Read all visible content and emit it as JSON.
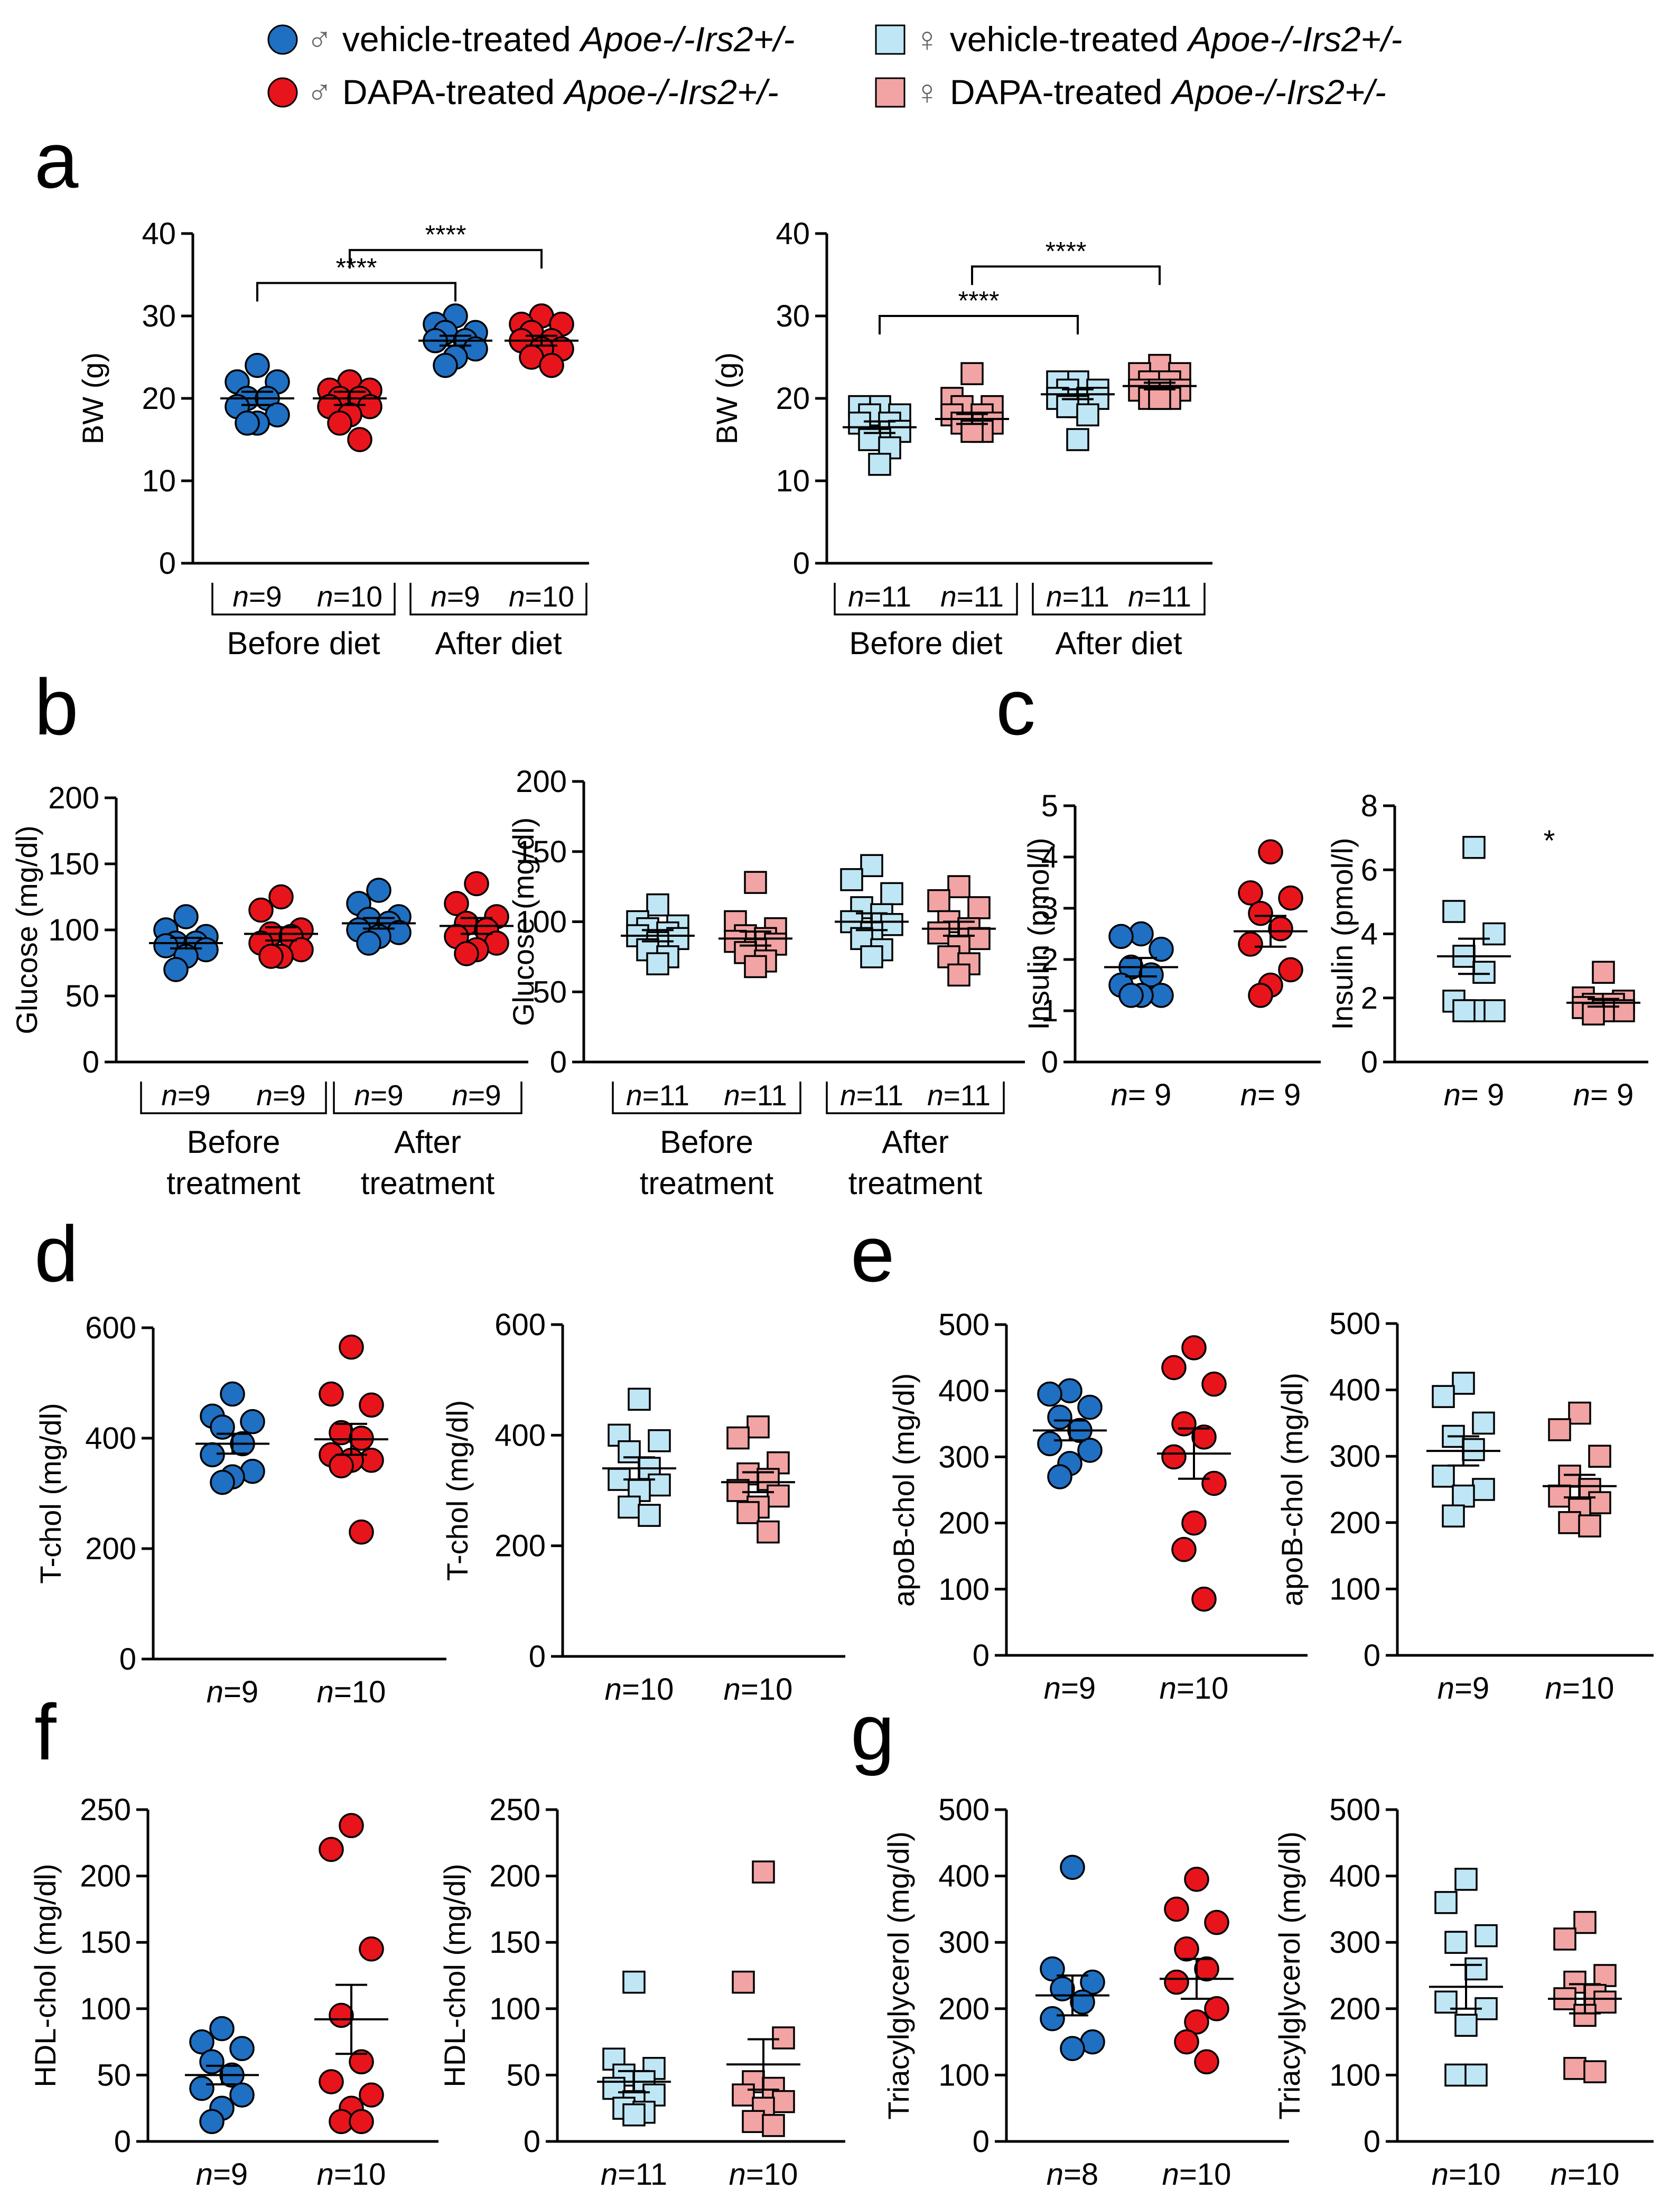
{
  "colors": {
    "male_vehicle": "#1f6fc2",
    "male_dapa": "#e8141b",
    "female_vehicle": "#bfe6f5",
    "female_dapa": "#f2a3a3",
    "ink": "#000000"
  },
  "legend": [
    {
      "key": "male_vehicle",
      "sex": "♂",
      "prefix": "vehicle-treated ",
      "genotype": "Apoe-/-Irs2+/-",
      "marker": "circle"
    },
    {
      "key": "female_vehicle",
      "sex": "♀",
      "prefix": "vehicle-treated ",
      "genotype": "Apoe-/-Irs2+/-",
      "marker": "square"
    },
    {
      "key": "male_dapa",
      "sex": "♂",
      "prefix": "DAPA-treated ",
      "genotype": "Apoe-/-Irs2+/-",
      "marker": "circle"
    },
    {
      "key": "female_dapa",
      "sex": "♀",
      "prefix": "DAPA-treated ",
      "genotype": "Apoe-/-Irs2+/-",
      "marker": "square"
    }
  ],
  "panel_letters": [
    "a",
    "b",
    "c",
    "d",
    "e",
    "f",
    "g"
  ],
  "chart_data": [
    {
      "id": "a-male",
      "panel": "a",
      "type": "scatter",
      "ylabel": "BW (g)",
      "ylim": [
        0,
        40
      ],
      "yticks": [
        0,
        10,
        20,
        30,
        40
      ],
      "groups": [
        {
          "n": "9",
          "key": "male_vehicle",
          "values": [
            24,
            22,
            22,
            20,
            20,
            19,
            18,
            17,
            17
          ],
          "mean": 20,
          "sem": 0.8
        },
        {
          "n": "10",
          "key": "male_dapa",
          "values": [
            22,
            21,
            21,
            20,
            20,
            19,
            19,
            18,
            17,
            15
          ],
          "mean": 20,
          "sem": 0.8
        },
        {
          "n": "9",
          "key": "male_vehicle",
          "values": [
            30,
            29,
            28,
            28,
            27,
            27,
            26,
            25,
            24
          ],
          "mean": 27,
          "sem": 0.6
        },
        {
          "n": "10",
          "key": "male_dapa",
          "values": [
            30,
            29,
            29,
            28,
            27,
            27,
            26,
            26,
            25,
            24
          ],
          "mean": 27,
          "sem": 0.6
        }
      ],
      "brackets": [
        {
          "labels": [
            "n=9",
            "n=10"
          ],
          "text": "Before diet"
        },
        {
          "labels": [
            "n=9",
            "n=10"
          ],
          "text": "After diet"
        }
      ],
      "sig": [
        {
          "from": 0,
          "to": 2,
          "label": "****",
          "y": 34
        },
        {
          "from": 1,
          "to": 3,
          "label": "****",
          "y": 38
        }
      ]
    },
    {
      "id": "a-female",
      "panel": "a",
      "type": "scatter",
      "ylabel": "BW (g)",
      "ylim": [
        0,
        40
      ],
      "yticks": [
        0,
        10,
        20,
        30,
        40
      ],
      "groups": [
        {
          "n": "11",
          "key": "female_vehicle",
          "values": [
            19,
            19,
            18,
            18,
            17,
            17,
            16,
            15,
            15,
            14,
            12
          ],
          "mean": 16.5,
          "sem": 0.7
        },
        {
          "n": "11",
          "key": "female_dapa",
          "values": [
            23,
            20,
            19,
            19,
            18,
            18,
            17,
            17,
            17,
            16,
            16
          ],
          "mean": 17.5,
          "sem": 0.6
        },
        {
          "n": "11",
          "key": "female_vehicle",
          "values": [
            22,
            22,
            21,
            21,
            20,
            20,
            20,
            19,
            19,
            18,
            15
          ],
          "mean": 20.5,
          "sem": 0.6
        },
        {
          "n": "11",
          "key": "female_dapa",
          "values": [
            24,
            23,
            23,
            22,
            22,
            21,
            21,
            21,
            20,
            20,
            20
          ],
          "mean": 21.5,
          "sem": 0.4
        }
      ],
      "brackets": [
        {
          "labels": [
            "n=11",
            "n=11"
          ],
          "text": "Before diet"
        },
        {
          "labels": [
            "n=11",
            "n=11"
          ],
          "text": "After diet"
        }
      ],
      "sig": [
        {
          "from": 0,
          "to": 2,
          "label": "****",
          "y": 30
        },
        {
          "from": 1,
          "to": 3,
          "label": "****",
          "y": 36
        }
      ]
    },
    {
      "id": "b-male",
      "panel": "b",
      "type": "scatter",
      "ylabel": "Glucose (mg/dl)",
      "ylim": [
        0,
        200
      ],
      "yticks": [
        0,
        50,
        100,
        150,
        200
      ],
      "groups": [
        {
          "n": "9",
          "key": "male_vehicle",
          "values": [
            110,
            100,
            95,
            90,
            90,
            88,
            85,
            80,
            70
          ],
          "mean": 90,
          "sem": 4
        },
        {
          "n": "9",
          "key": "male_dapa",
          "values": [
            125,
            115,
            100,
            97,
            95,
            90,
            85,
            80,
            80
          ],
          "mean": 97,
          "sem": 5
        },
        {
          "n": "9",
          "key": "male_vehicle",
          "values": [
            130,
            120,
            110,
            108,
            105,
            100,
            98,
            95,
            90
          ],
          "mean": 105,
          "sem": 4
        },
        {
          "n": "9",
          "key": "male_dapa",
          "values": [
            135,
            120,
            110,
            105,
            100,
            95,
            90,
            85,
            82
          ],
          "mean": 103,
          "sem": 6
        }
      ],
      "brackets": [
        {
          "labels": [
            "n=9",
            "n=9"
          ],
          "text": "Before\ntreatment"
        },
        {
          "labels": [
            "n=9",
            "n=9"
          ],
          "text": "After\ntreatment"
        }
      ],
      "sig": []
    },
    {
      "id": "b-female",
      "panel": "b",
      "type": "scatter",
      "ylabel": "Glucose (mg/dl)",
      "ylim": [
        0,
        200
      ],
      "yticks": [
        0,
        50,
        100,
        150,
        200
      ],
      "groups": [
        {
          "n": "11",
          "key": "female_vehicle",
          "values": [
            112,
            100,
            97,
            95,
            92,
            90,
            88,
            85,
            80,
            75,
            70
          ],
          "mean": 90,
          "sem": 4
        },
        {
          "n": "11",
          "key": "female_dapa",
          "values": [
            128,
            100,
            95,
            90,
            88,
            86,
            84,
            80,
            78,
            72,
            68
          ],
          "mean": 88,
          "sem": 5
        },
        {
          "n": "11",
          "key": "female_vehicle",
          "values": [
            140,
            130,
            120,
            110,
            105,
            100,
            98,
            92,
            88,
            80,
            75
          ],
          "mean": 100,
          "sem": 6
        },
        {
          "n": "11",
          "key": "female_dapa",
          "values": [
            125,
            115,
            110,
            100,
            95,
            92,
            88,
            82,
            75,
            70,
            62
          ],
          "mean": 95,
          "sem": 5
        }
      ],
      "brackets": [
        {
          "labels": [
            "n=11",
            "n=11"
          ],
          "text": "Before\ntreatment"
        },
        {
          "labels": [
            "n=11",
            "n=11"
          ],
          "text": "After\ntreatment"
        }
      ],
      "sig": []
    },
    {
      "id": "c-male",
      "panel": "c",
      "type": "scatter",
      "ylabel": "Insulin (pmol/l)",
      "ylim": [
        0,
        5
      ],
      "yticks": [
        0,
        1,
        2,
        3,
        4,
        5
      ],
      "groups": [
        {
          "n": "9",
          "key": "male_vehicle",
          "values": [
            2.5,
            2.45,
            2.2,
            1.85,
            1.7,
            1.5,
            1.3,
            1.3,
            1.3
          ],
          "mean": 1.85,
          "sem": 0.18
        },
        {
          "n": "9",
          "key": "male_dapa",
          "values": [
            4.1,
            3.3,
            3.2,
            2.9,
            2.6,
            2.3,
            1.8,
            1.5,
            1.3
          ],
          "mean": 2.55,
          "sem": 0.3
        }
      ],
      "nlabels": [
        "n= 9",
        "n= 9"
      ],
      "sig": []
    },
    {
      "id": "c-female",
      "panel": "c",
      "type": "scatter",
      "ylabel": "Insulin (pmol/l)",
      "ylim": [
        0,
        8
      ],
      "yticks": [
        0,
        2,
        4,
        6,
        8
      ],
      "groups": [
        {
          "n": "9",
          "key": "female_vehicle",
          "values": [
            6.7,
            4.7,
            4.0,
            3.3,
            2.8,
            1.9,
            1.6,
            1.6,
            1.6
          ],
          "mean": 3.3,
          "sem": 0.55
        },
        {
          "n": "9",
          "key": "female_dapa",
          "values": [
            2.8,
            2.0,
            1.9,
            1.8,
            1.8,
            1.7,
            1.6,
            1.6,
            1.5
          ],
          "mean": 1.85,
          "sem": 0.12
        }
      ],
      "nlabels": [
        "n= 9",
        "n= 9"
      ],
      "star": {
        "label": "*",
        "y": 6.6
      },
      "sig": []
    },
    {
      "id": "d-male",
      "panel": "d",
      "type": "scatter",
      "ylabel": "T-chol (mg/dl)",
      "ylim": [
        0,
        600
      ],
      "yticks": [
        0,
        200,
        400,
        600
      ],
      "groups": [
        {
          "n": "9",
          "key": "male_vehicle",
          "values": [
            480,
            440,
            430,
            420,
            390,
            370,
            340,
            330,
            320
          ],
          "mean": 390,
          "sem": 18
        },
        {
          "n": "10",
          "key": "male_dapa",
          "values": [
            565,
            480,
            460,
            410,
            400,
            370,
            360,
            360,
            350,
            230
          ],
          "mean": 398,
          "sem": 28
        }
      ],
      "nlabels": [
        "n=9",
        "n=10"
      ],
      "sig": []
    },
    {
      "id": "d-female",
      "panel": "d",
      "type": "scatter",
      "ylabel": "T-chol (mg/dl)",
      "ylim": [
        0,
        600
      ],
      "yticks": [
        0,
        200,
        400,
        600
      ],
      "groups": [
        {
          "n": "10",
          "key": "female_vehicle",
          "values": [
            465,
            400,
            390,
            370,
            340,
            320,
            310,
            300,
            270,
            255
          ],
          "mean": 340,
          "sem": 20
        },
        {
          "n": "10",
          "key": "female_dapa",
          "values": [
            415,
            395,
            350,
            330,
            320,
            300,
            290,
            270,
            260,
            225
          ],
          "mean": 315,
          "sem": 18
        }
      ],
      "nlabels": [
        "n=10",
        "n=10"
      ],
      "sig": []
    },
    {
      "id": "e-male",
      "panel": "e",
      "type": "scatter",
      "ylabel": "apoB-chol (mg/dl)",
      "ylim": [
        0,
        500
      ],
      "yticks": [
        0,
        100,
        200,
        300,
        400,
        500
      ],
      "groups": [
        {
          "n": "9",
          "key": "male_vehicle",
          "values": [
            400,
            395,
            375,
            360,
            340,
            320,
            310,
            290,
            270
          ],
          "mean": 340,
          "sem": 15
        },
        {
          "n": "10",
          "key": "male_dapa",
          "values": [
            465,
            435,
            410,
            350,
            330,
            300,
            260,
            200,
            160,
            85
          ],
          "mean": 305,
          "sem": 38
        }
      ],
      "nlabels": [
        "n=9",
        "n=10"
      ],
      "sig": []
    },
    {
      "id": "e-female",
      "panel": "e",
      "type": "scatter",
      "ylabel": "apoB-chol (mg/dl)",
      "ylim": [
        0,
        500
      ],
      "yticks": [
        0,
        100,
        200,
        300,
        400,
        500
      ],
      "groups": [
        {
          "n": "9",
          "key": "female_vehicle",
          "values": [
            410,
            390,
            350,
            330,
            310,
            270,
            250,
            240,
            210
          ],
          "mean": 308,
          "sem": 22
        },
        {
          "n": "10",
          "key": "female_dapa",
          "values": [
            365,
            340,
            300,
            270,
            250,
            240,
            230,
            220,
            200,
            195
          ],
          "mean": 255,
          "sem": 17
        }
      ],
      "nlabels": [
        "n=9",
        "n=10"
      ],
      "sig": []
    },
    {
      "id": "f-male",
      "panel": "f",
      "type": "scatter",
      "ylabel": "HDL-chol (mg/dl)",
      "ylim": [
        0,
        250
      ],
      "yticks": [
        0,
        50,
        100,
        150,
        200,
        250
      ],
      "groups": [
        {
          "n": "9",
          "key": "male_vehicle",
          "values": [
            85,
            75,
            70,
            60,
            50,
            40,
            35,
            25,
            15
          ],
          "mean": 50,
          "sem": 7
        },
        {
          "n": "10",
          "key": "male_dapa",
          "values": [
            238,
            220,
            145,
            95,
            60,
            45,
            35,
            25,
            15,
            15
          ],
          "mean": 92,
          "sem": 26
        }
      ],
      "nlabels": [
        "n=9",
        "n=10"
      ],
      "sig": []
    },
    {
      "id": "f-female",
      "panel": "f",
      "type": "scatter",
      "ylabel": "HDL-chol (mg/dl)",
      "ylim": [
        0,
        250
      ],
      "yticks": [
        0,
        50,
        100,
        150,
        200,
        250
      ],
      "groups": [
        {
          "n": "11",
          "key": "female_vehicle",
          "values": [
            120,
            62,
            55,
            50,
            45,
            40,
            35,
            30,
            25,
            22,
            20
          ],
          "mean": 45,
          "sem": 8
        },
        {
          "n": "10",
          "key": "female_dapa",
          "values": [
            203,
            120,
            78,
            45,
            40,
            35,
            30,
            25,
            15,
            12
          ],
          "mean": 58,
          "sem": 19
        }
      ],
      "nlabels": [
        "n=11",
        "n=10"
      ],
      "sig": []
    },
    {
      "id": "g-male",
      "panel": "g",
      "type": "scatter",
      "ylabel": "Triacylglycerol (mg/dl)",
      "ylim": [
        0,
        500
      ],
      "yticks": [
        0,
        100,
        200,
        300,
        400,
        500
      ],
      "groups": [
        {
          "n": "8",
          "key": "male_vehicle",
          "values": [
            413,
            260,
            240,
            230,
            210,
            185,
            150,
            140
          ],
          "mean": 220,
          "sem": 30
        },
        {
          "n": "10",
          "key": "male_dapa",
          "values": [
            395,
            350,
            330,
            290,
            260,
            240,
            200,
            180,
            150,
            120
          ],
          "mean": 245,
          "sem": 30
        }
      ],
      "nlabels": [
        "n=8",
        "n=10"
      ],
      "sig": []
    },
    {
      "id": "g-female",
      "panel": "g",
      "type": "scatter",
      "ylabel": "Triacylglycerol (mg/dl)",
      "ylim": [
        0,
        500
      ],
      "yticks": [
        0,
        100,
        200,
        300,
        400,
        500
      ],
      "groups": [
        {
          "n": "10",
          "key": "female_vehicle",
          "values": [
            395,
            360,
            310,
            300,
            260,
            210,
            200,
            175,
            100,
            100
          ],
          "mean": 233,
          "sem": 33
        },
        {
          "n": "10",
          "key": "female_dapa",
          "values": [
            330,
            305,
            250,
            240,
            220,
            215,
            210,
            190,
            110,
            105
          ],
          "mean": 215,
          "sem": 22
        }
      ],
      "nlabels": [
        "n=10",
        "n=10"
      ],
      "sig": []
    }
  ]
}
